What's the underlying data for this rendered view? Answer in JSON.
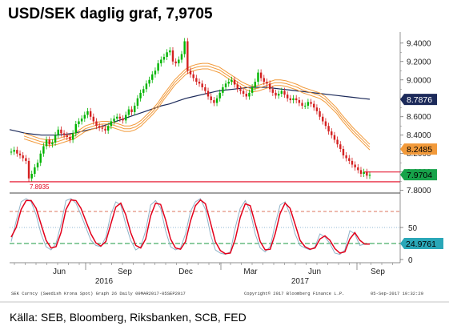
{
  "title": "USD/SEK daglig graf, 7,9705",
  "source": "Källa: SEB, Bloomberg, Riksbanken, SCB, FED",
  "footer": {
    "left": "SEK Curncy (Swedish Krona Spot) Graph 26  Daily 09MAR2017-05SEP2017",
    "right_copyright": "Copyright© 2017 Bloomberg Finance L.P.",
    "right_date": "05-Sep-2017 10:32:20"
  },
  "chart_data": [
    {
      "type": "line",
      "panel": "price",
      "y_ticks": [
        "9.4000",
        "9.2000",
        "9.0000",
        "8.8000",
        "8.6000",
        "8.4000",
        "8.2000",
        "8.0000",
        "7.8000"
      ],
      "ylim": [
        7.78,
        9.52
      ],
      "x_ticks": [
        "Jun",
        "Sep",
        "Dec",
        "Mar",
        "Jun",
        "Sep"
      ],
      "x_years": [
        "2016",
        "2017"
      ],
      "annotations": [
        {
          "label": "7.8935",
          "value": 7.8935
        },
        {
          "label": "8.7876",
          "value": 8.7876
        },
        {
          "label": "8.2485",
          "value": 8.2485
        },
        {
          "label": "7.9704",
          "value": 7.9704
        }
      ],
      "resistance_line": 8.0,
      "support_line": 7.8935,
      "price_series": [
        8.22,
        8.24,
        8.2,
        8.18,
        8.15,
        8.12,
        7.93,
        7.98,
        8.05,
        8.1,
        8.2,
        8.28,
        8.35,
        8.3,
        8.32,
        8.4,
        8.46,
        8.42,
        8.4,
        8.38,
        8.35,
        8.42,
        8.52,
        8.55,
        8.58,
        8.62,
        8.66,
        8.6,
        8.55,
        8.5,
        8.48,
        8.47,
        8.45,
        8.5,
        8.55,
        8.58,
        8.6,
        8.58,
        8.56,
        8.62,
        8.68,
        8.65,
        8.72,
        8.8,
        8.86,
        8.9,
        8.96,
        9.0,
        9.06,
        9.1,
        9.18,
        9.22,
        9.25,
        9.3,
        9.32,
        9.2,
        9.18,
        9.22,
        9.28,
        9.42,
        9.1,
        9.06,
        9.02,
        8.98,
        8.96,
        8.92,
        8.88,
        8.82,
        8.78,
        8.75,
        8.8,
        8.86,
        8.92,
        8.96,
        8.98,
        9.0,
        8.95,
        8.9,
        8.88,
        8.85,
        8.82,
        8.86,
        8.92,
        8.98,
        9.08,
        9.02,
        8.98,
        8.96,
        8.9,
        8.86,
        8.83,
        8.85,
        8.88,
        8.84,
        8.8,
        8.78,
        8.8,
        8.78,
        8.75,
        8.72,
        8.72,
        8.76,
        8.74,
        8.7,
        8.66,
        8.6,
        8.55,
        8.5,
        8.44,
        8.4,
        8.35,
        8.3,
        8.25,
        8.18,
        8.15,
        8.12,
        8.08,
        8.05,
        8.02,
        7.98,
        8.0,
        7.96,
        7.97
      ],
      "ma_upper": [
        8.42,
        8.4,
        8.38,
        8.36,
        8.35,
        8.35,
        8.36,
        8.38,
        8.4,
        8.42,
        8.46,
        8.5,
        8.52,
        8.54,
        8.55,
        8.55,
        8.54,
        8.52,
        8.5,
        8.5,
        8.52,
        8.56,
        8.62,
        8.68,
        8.75,
        8.84,
        8.92,
        9.0,
        9.06,
        9.12,
        9.15,
        9.17,
        9.18,
        9.18,
        9.16,
        9.14,
        9.1,
        9.06,
        9.02,
        8.98,
        8.95,
        8.93,
        8.94,
        8.96,
        8.98,
        9.0,
        9.0,
        8.99,
        8.97,
        8.95,
        8.92,
        8.9,
        8.88,
        8.86,
        8.82,
        8.76,
        8.7,
        8.62,
        8.55,
        8.48,
        8.42,
        8.36,
        8.3
      ],
      "ma_mid": [
        8.39,
        8.37,
        8.35,
        8.33,
        8.32,
        8.32,
        8.33,
        8.35,
        8.37,
        8.39,
        8.43,
        8.47,
        8.49,
        8.51,
        8.52,
        8.52,
        8.51,
        8.49,
        8.47,
        8.47,
        8.49,
        8.53,
        8.59,
        8.65,
        8.72,
        8.81,
        8.89,
        8.97,
        9.03,
        9.09,
        9.12,
        9.14,
        9.15,
        9.15,
        9.13,
        9.11,
        9.07,
        9.03,
        8.99,
        8.95,
        8.92,
        8.9,
        8.91,
        8.93,
        8.95,
        8.97,
        8.97,
        8.96,
        8.94,
        8.92,
        8.89,
        8.87,
        8.85,
        8.83,
        8.79,
        8.73,
        8.67,
        8.59,
        8.52,
        8.45,
        8.39,
        8.33,
        8.27
      ],
      "ma_lower": [
        8.36,
        8.34,
        8.32,
        8.3,
        8.29,
        8.29,
        8.3,
        8.32,
        8.34,
        8.36,
        8.4,
        8.44,
        8.46,
        8.48,
        8.49,
        8.49,
        8.48,
        8.46,
        8.44,
        8.44,
        8.46,
        8.5,
        8.56,
        8.62,
        8.69,
        8.78,
        8.86,
        8.94,
        9.0,
        9.06,
        9.09,
        9.11,
        9.12,
        9.12,
        9.1,
        9.08,
        9.04,
        9.0,
        8.96,
        8.92,
        8.89,
        8.87,
        8.88,
        8.9,
        8.92,
        8.94,
        8.94,
        8.93,
        8.91,
        8.89,
        8.86,
        8.84,
        8.82,
        8.8,
        8.76,
        8.7,
        8.64,
        8.56,
        8.49,
        8.42,
        8.36,
        8.3,
        8.24
      ],
      "ma_long": [
        8.46,
        8.44,
        8.42,
        8.41,
        8.4,
        8.4,
        8.4,
        8.41,
        8.42,
        8.44,
        8.46,
        8.48,
        8.51,
        8.54,
        8.57,
        8.6,
        8.63,
        8.66,
        8.69,
        8.72,
        8.74,
        8.77,
        8.8,
        8.82,
        8.84,
        8.86,
        8.88,
        8.89,
        8.9,
        8.91,
        8.92,
        8.92,
        8.92,
        8.91,
        8.9,
        8.89,
        8.88,
        8.87,
        8.86,
        8.85,
        8.84,
        8.83,
        8.82,
        8.81,
        8.8,
        8.79
      ],
      "colors": {
        "up": "#00b400",
        "down": "#d42020",
        "ma_band": "#f29a3a",
        "ma_long": "#1c2a5a",
        "line_red": "#e3001b"
      }
    },
    {
      "type": "line",
      "panel": "oscillator",
      "y_ticks": [
        "50",
        "0"
      ],
      "ylim": [
        -5,
        100
      ],
      "levels": [
        75,
        50,
        25
      ],
      "value_label": "24.9761",
      "fast": [
        28,
        60,
        90,
        95,
        90,
        70,
        40,
        20,
        15,
        25,
        55,
        92,
        95,
        88,
        70,
        50,
        30,
        22,
        20,
        35,
        70,
        90,
        85,
        55,
        30,
        15,
        20,
        45,
        85,
        92,
        80,
        45,
        20,
        15,
        18,
        40,
        75,
        90,
        95,
        78,
        40,
        15,
        10,
        8,
        12,
        50,
        80,
        92,
        75,
        40,
        18,
        12,
        20,
        55,
        85,
        90,
        70,
        40,
        22,
        18,
        15,
        20,
        40,
        35,
        25,
        10,
        8,
        15,
        45,
        40,
        22,
        24,
        25
      ],
      "slow": [
        35,
        50,
        78,
        92,
        92,
        80,
        55,
        30,
        18,
        20,
        42,
        78,
        93,
        92,
        80,
        60,
        40,
        26,
        21,
        28,
        55,
        82,
        88,
        70,
        42,
        22,
        18,
        32,
        68,
        88,
        86,
        62,
        32,
        18,
        16,
        28,
        60,
        84,
        93,
        87,
        58,
        28,
        14,
        9,
        10,
        32,
        66,
        87,
        84,
        56,
        28,
        15,
        16,
        40,
        72,
        88,
        80,
        55,
        30,
        20,
        16,
        18,
        32,
        37,
        30,
        17,
        10,
        12,
        32,
        42,
        30,
        24,
        24
      ],
      "colors": {
        "slow": "#e3001b",
        "fast": "#8fb3c8",
        "upper": "#d24a2a",
        "mid": "#6da0c8",
        "lower": "#1a9a40"
      }
    }
  ]
}
